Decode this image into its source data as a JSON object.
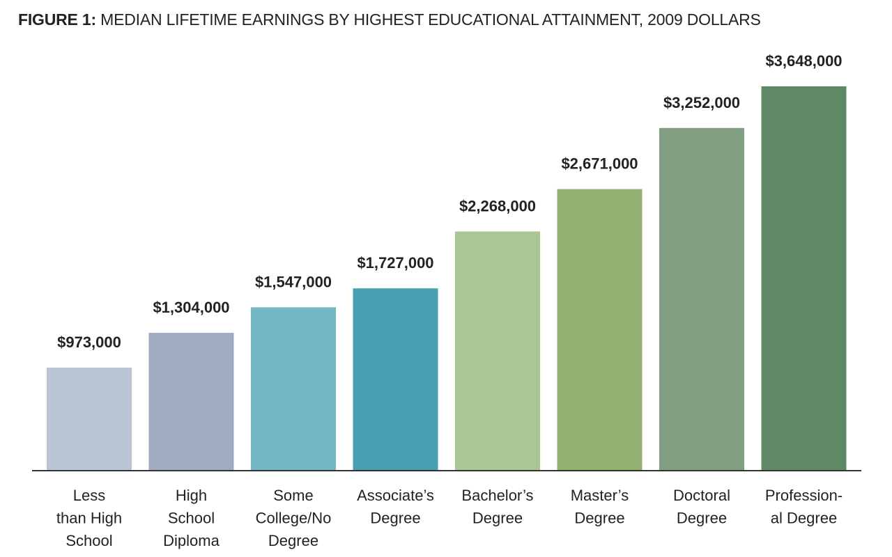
{
  "title": {
    "prefix": "FIGURE 1:",
    "text": "MEDIAN LIFETIME EARNINGS BY HIGHEST EDUCATIONAL ATTAINMENT, 2009 DOLLARS"
  },
  "chart_data": {
    "type": "bar",
    "title": "FIGURE 1: MEDIAN LIFETIME EARNINGS BY HIGHEST EDUCATIONAL ATTAINMENT, 2009 DOLLARS",
    "xlabel": "",
    "ylabel": "",
    "ylim": [
      0,
      3648000
    ],
    "grid": false,
    "categories": [
      [
        "Less",
        "than High",
        "School"
      ],
      [
        "High",
        "School",
        "Diploma"
      ],
      [
        "Some",
        "College/No",
        "Degree"
      ],
      [
        "Associate’s",
        "Degree"
      ],
      [
        "Bachelor’s",
        "Degree"
      ],
      [
        "Master’s",
        "Degree"
      ],
      [
        "Doctoral",
        "Degree"
      ],
      [
        "Profession-",
        "al Degree"
      ]
    ],
    "values": [
      973000,
      1304000,
      1547000,
      1727000,
      2268000,
      2671000,
      3252000,
      3648000
    ],
    "data_labels": [
      "$973,000",
      "$1,304,000",
      "$1,547,000",
      "$1,727,000",
      "$2,268,000",
      "$2,671,000",
      "$3,252,000",
      "$3,648,000"
    ],
    "colors": [
      "#bac5d4",
      "#9eabc1",
      "#75b6c4",
      "#47a1b2",
      "#abc695",
      "#92b171",
      "#819e83",
      "#5f8867"
    ]
  }
}
